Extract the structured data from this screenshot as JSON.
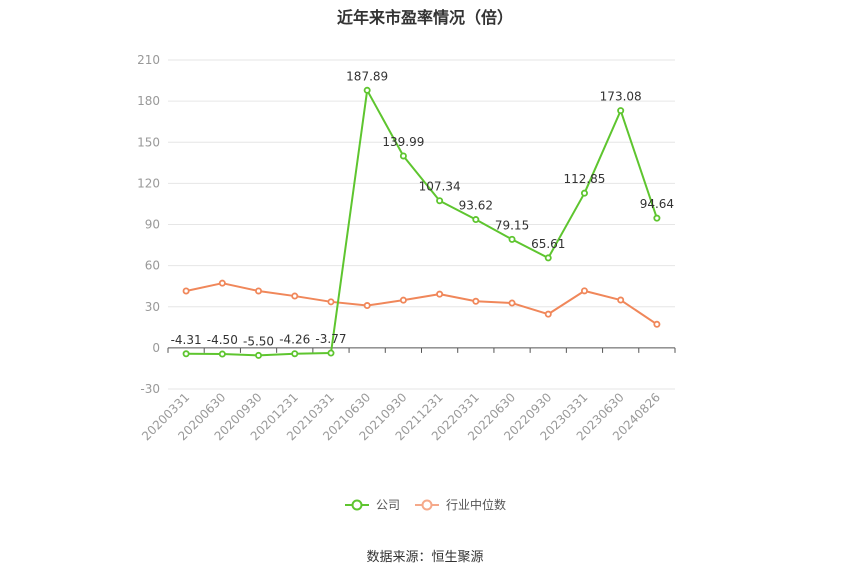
{
  "chart_data": {
    "type": "line",
    "title": "近年来市盈率情况（倍）",
    "categories": [
      "20200331",
      "20200630",
      "20200930",
      "20201231",
      "20210331",
      "20210630",
      "20210930",
      "20211231",
      "20220331",
      "20220630",
      "20220930",
      "20230331",
      "20230630",
      "20240826"
    ],
    "ylim": [
      -30,
      210
    ],
    "yticks": [
      -30,
      0,
      30,
      60,
      90,
      120,
      150,
      180,
      210
    ],
    "grid": true,
    "legend_position": "bottom",
    "series": [
      {
        "name": "公司",
        "color": "#5ec52f",
        "values": [
          -4.31,
          -4.5,
          -5.5,
          -4.26,
          -3.77,
          187.89,
          139.99,
          107.34,
          93.62,
          79.15,
          65.61,
          112.85,
          173.08,
          94.64
        ],
        "labels": [
          "-4.31",
          "-4.50",
          "-5.50",
          "-4.26",
          "-3.77",
          "187.89",
          "139.99",
          "107.34",
          "93.62",
          "79.15",
          "65.61",
          "112.85",
          "173.08",
          "94.64"
        ]
      },
      {
        "name": "行业中位数",
        "color": "#f0875a",
        "values": [
          41.5,
          47.2,
          41.5,
          37.8,
          33.6,
          30.9,
          34.8,
          39.2,
          34.0,
          32.7,
          24.6,
          41.6,
          34.9,
          17.2
        ]
      }
    ]
  },
  "source": "数据来源：恒生聚源"
}
